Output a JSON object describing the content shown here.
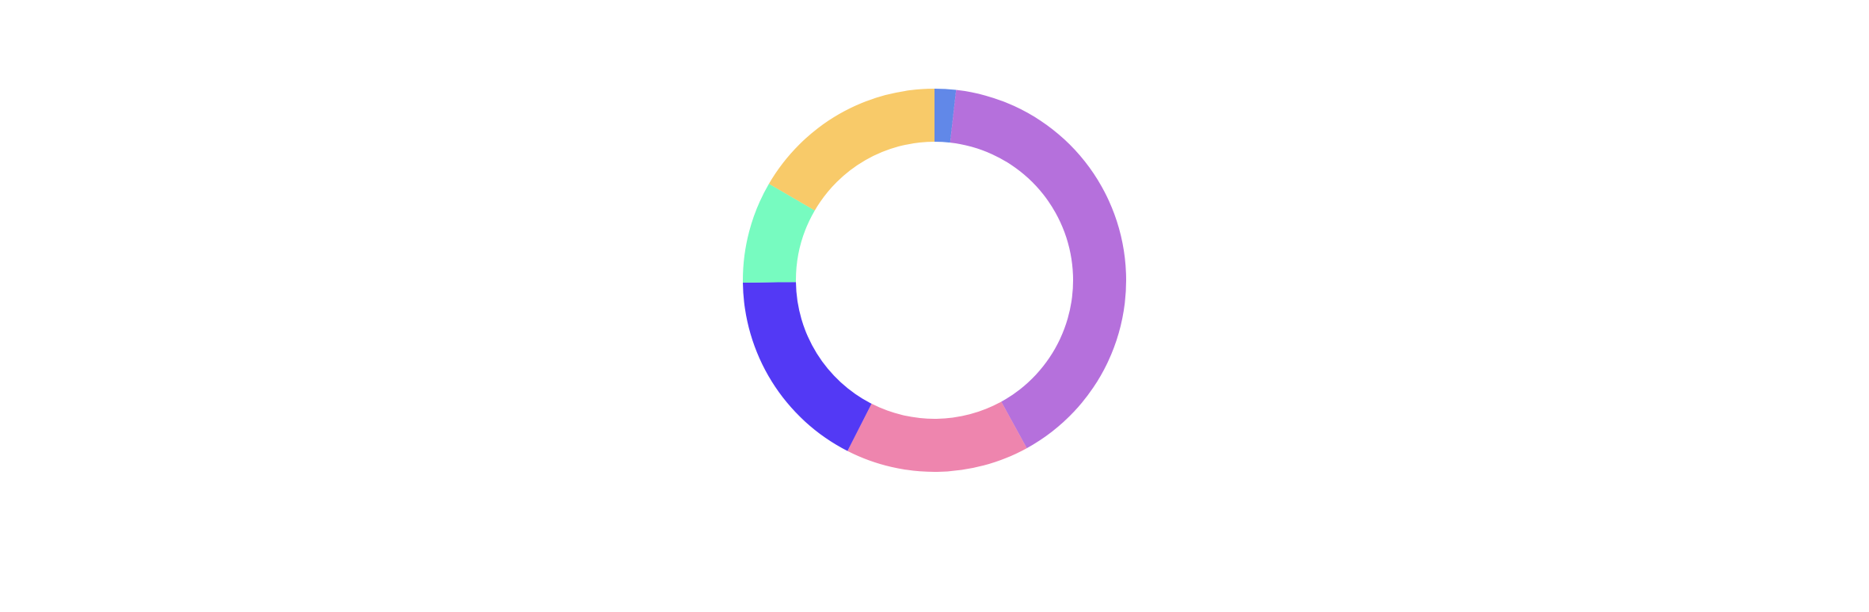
{
  "chart_data": {
    "type": "pie",
    "variant": "donut",
    "title": "",
    "legend": "none",
    "start_angle_deg": 0,
    "direction": "clockwise",
    "slices": [
      {
        "value": 1.8,
        "color": "#6188e8"
      },
      {
        "value": 40.2,
        "color": "#b570dc"
      },
      {
        "value": 15.5,
        "color": "#ee85ae"
      },
      {
        "value": 17.3,
        "color": "#5339f5"
      },
      {
        "value": 8.6,
        "color": "#77fbc0"
      },
      {
        "value": 16.6,
        "color": "#f8ca69"
      }
    ]
  }
}
